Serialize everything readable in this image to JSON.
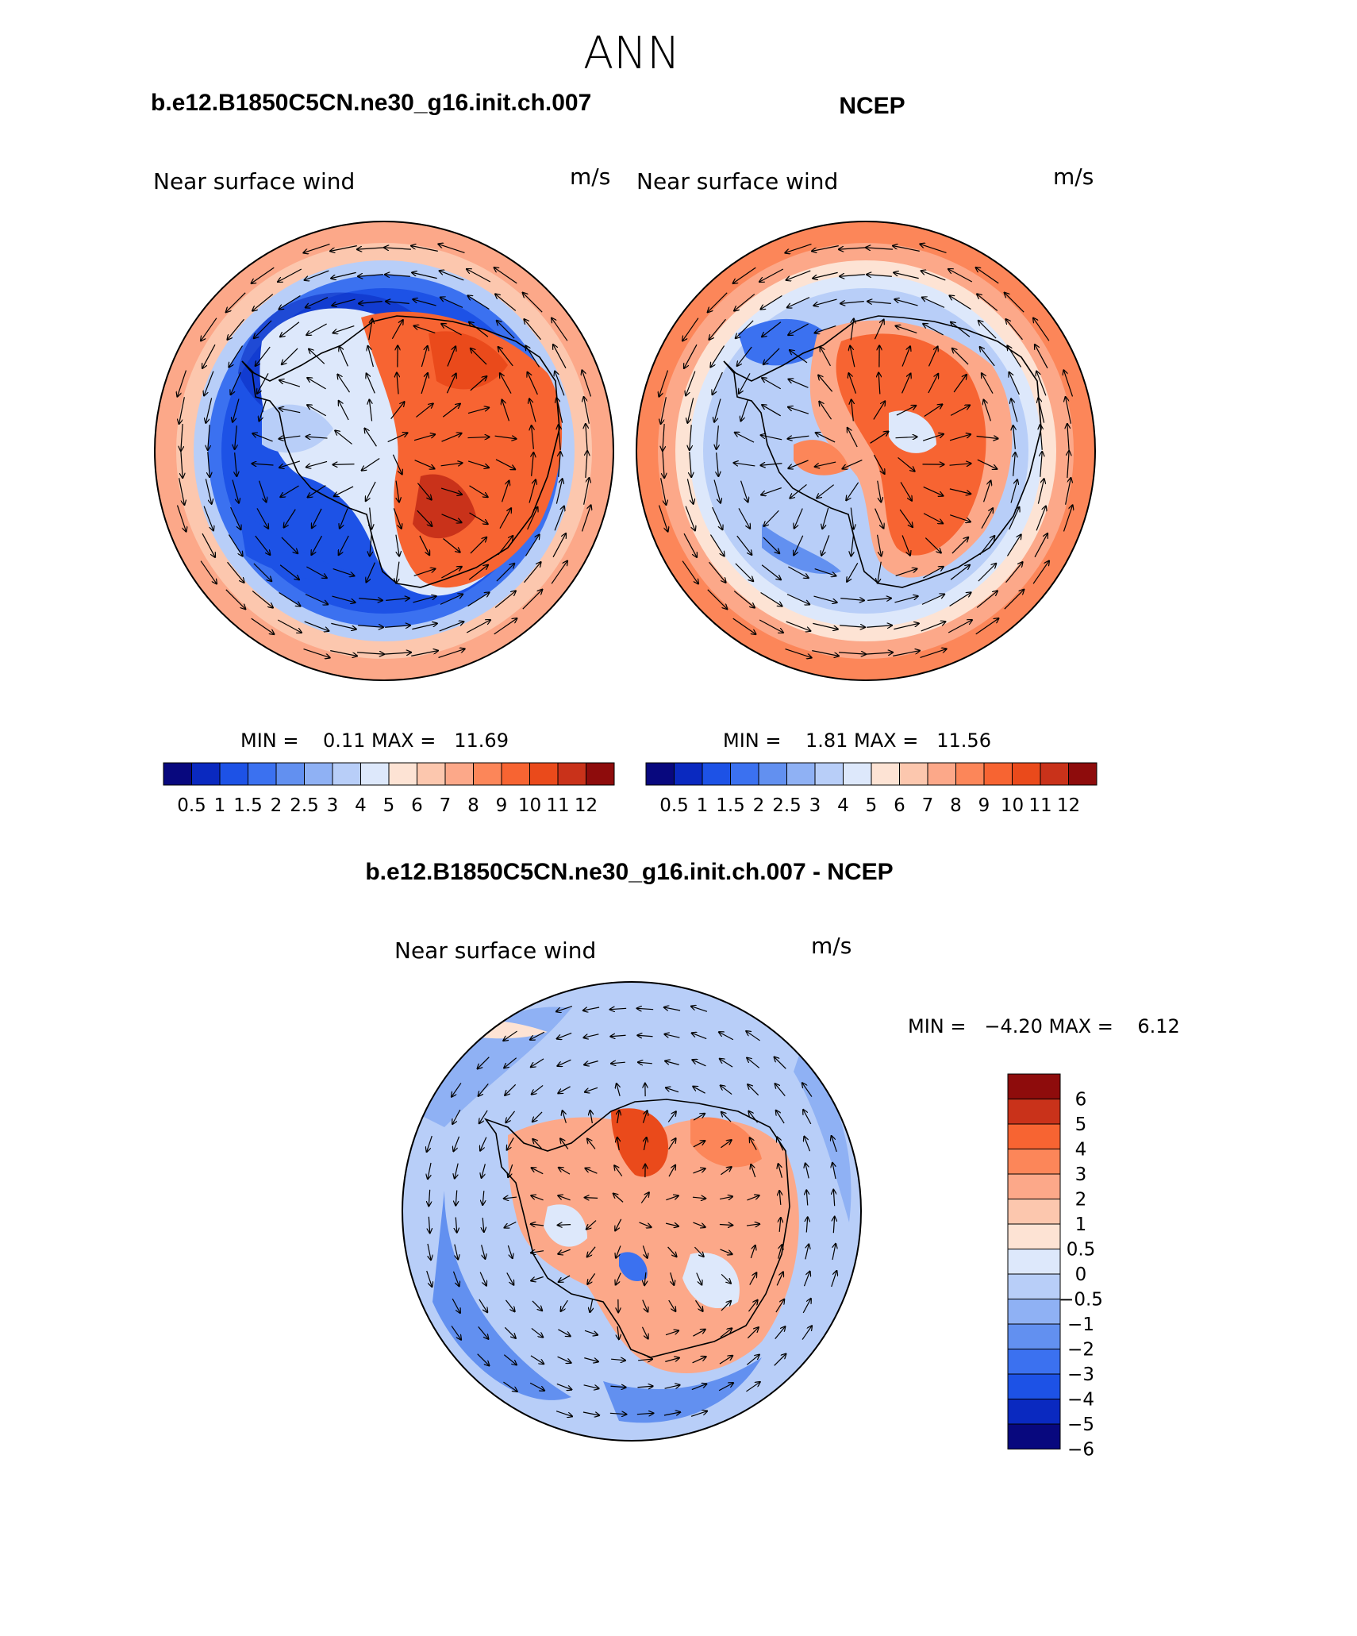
{
  "figure_title": "ANN",
  "colors": {
    "abs_scale": [
      "#08087e",
      "#0a29c0",
      "#1d52e6",
      "#3b71f0",
      "#6290f0",
      "#8fb1f4",
      "#b8cef8",
      "#dde8fb",
      "#fde3d4",
      "#fcc7ae",
      "#fca889",
      "#fc8659",
      "#f76432",
      "#ea4a1b",
      "#c9321a",
      "#8e0c0c"
    ],
    "diff_scale": [
      "#08087e",
      "#0a29c0",
      "#1d52e6",
      "#3b71f0",
      "#6290f0",
      "#8fb1f4",
      "#b8cef8",
      "#dde8fb",
      "#fde3d4",
      "#fcc7ae",
      "#fca889",
      "#fc8659",
      "#f76432",
      "#c9321a",
      "#8e0c0c"
    ]
  },
  "chart_data": [
    {
      "type": "heatmap",
      "projection": "south-polar-stereographic",
      "case": "b.e12.B1850C5CN.ne30_g16.init.ch.007",
      "variable": "Near surface wind",
      "units": "m/s",
      "stats": "MIN =    0.11 MAX =   11.69",
      "min": 0.11,
      "max": 11.69,
      "colorbar_levels": [
        "0.5",
        "1",
        "1.5",
        "2",
        "2.5",
        "3",
        "4",
        "5",
        "6",
        "7",
        "8",
        "9",
        "10",
        "11",
        "12"
      ],
      "overlay": "wind vectors"
    },
    {
      "type": "heatmap",
      "projection": "south-polar-stereographic",
      "case": "NCEP",
      "variable": "Near surface wind",
      "units": "m/s",
      "stats": "MIN =    1.81 MAX =   11.56",
      "min": 1.81,
      "max": 11.56,
      "colorbar_levels": [
        "0.5",
        "1",
        "1.5",
        "2",
        "2.5",
        "3",
        "4",
        "5",
        "6",
        "7",
        "8",
        "9",
        "10",
        "11",
        "12"
      ],
      "overlay": "wind vectors"
    },
    {
      "type": "heatmap",
      "projection": "south-polar-stereographic",
      "case": "b.e12.B1850C5CN.ne30_g16.init.ch.007 - NCEP",
      "variable": "Near surface wind",
      "units": "m/s",
      "stats": "MIN =   −4.20 MAX =    6.12",
      "min": -4.2,
      "max": 6.12,
      "colorbar_levels": [
        "6",
        "5",
        "4",
        "3",
        "2",
        "1",
        "0.5",
        "0",
        "−0.5",
        "−1",
        "−2",
        "−3",
        "−4",
        "−5",
        "−6"
      ],
      "overlay": "wind vectors"
    }
  ]
}
